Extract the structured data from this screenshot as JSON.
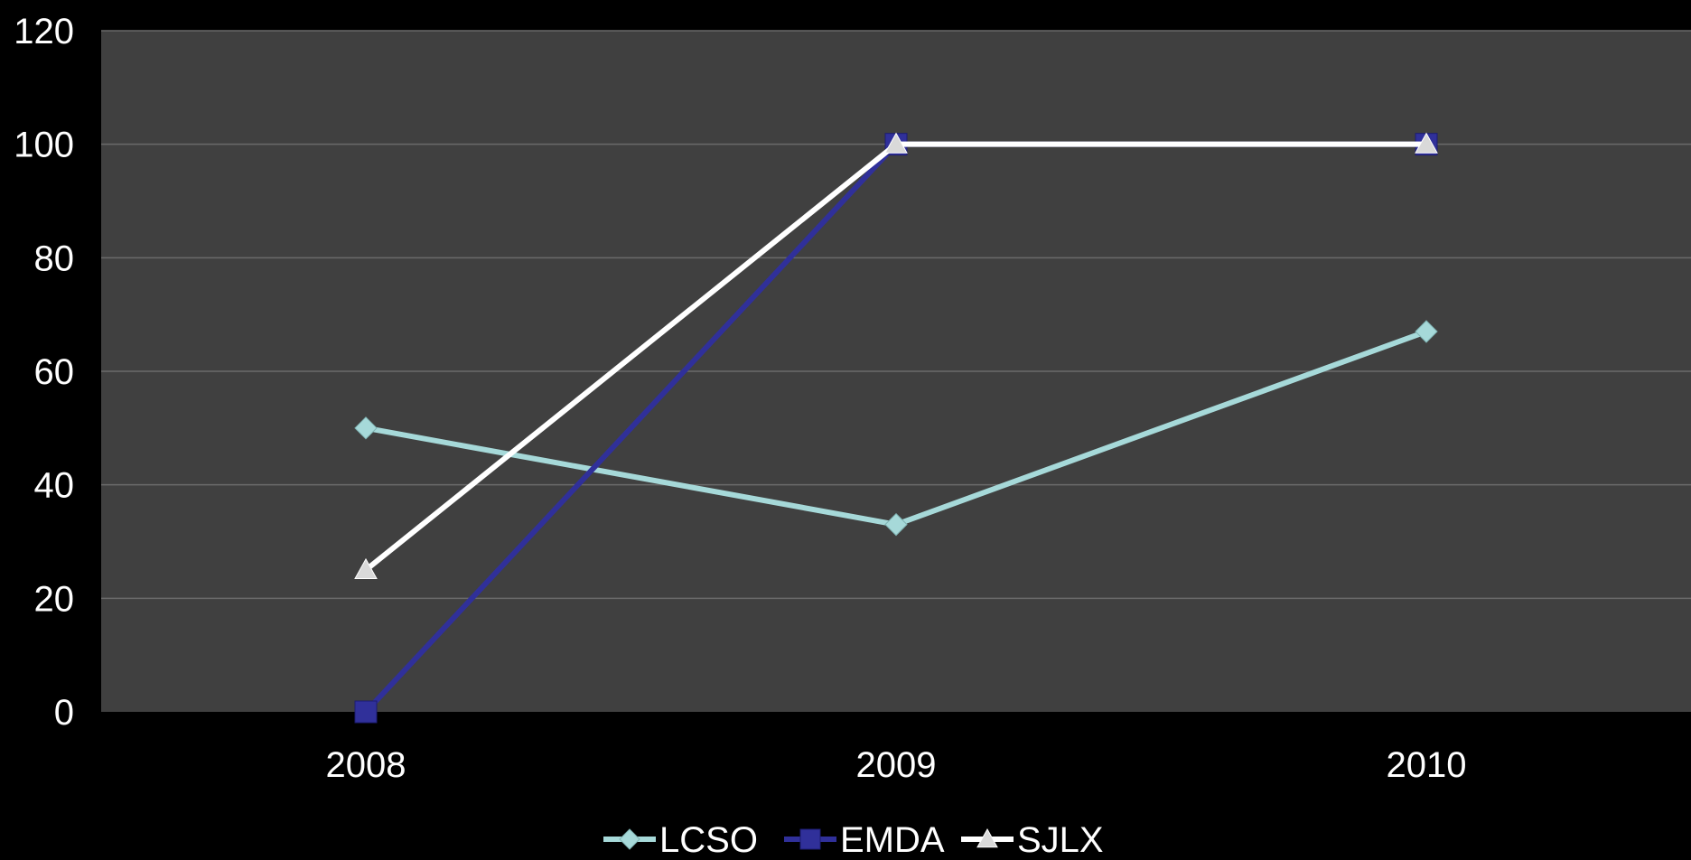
{
  "chart_data": {
    "type": "line",
    "categories": [
      "2008",
      "2009",
      "2010"
    ],
    "series": [
      {
        "name": "LCSO",
        "values": [
          50,
          33,
          67
        ],
        "color": "#a6d9d9",
        "marker": "diamond"
      },
      {
        "name": "EMDA",
        "values": [
          0,
          100,
          100
        ],
        "color": "#30309a",
        "marker": "square"
      },
      {
        "name": "SJLX",
        "values": [
          25,
          100,
          100
        ],
        "color": "#ffffff",
        "marker": "triangle"
      }
    ],
    "ylim": [
      0,
      120
    ],
    "yticks": [
      0,
      20,
      40,
      60,
      80,
      100,
      120
    ],
    "grid": true,
    "legend_position": "bottom",
    "plot_background": "#404040",
    "page_background": "#000000",
    "gridline_color": "#6a6a6a"
  }
}
